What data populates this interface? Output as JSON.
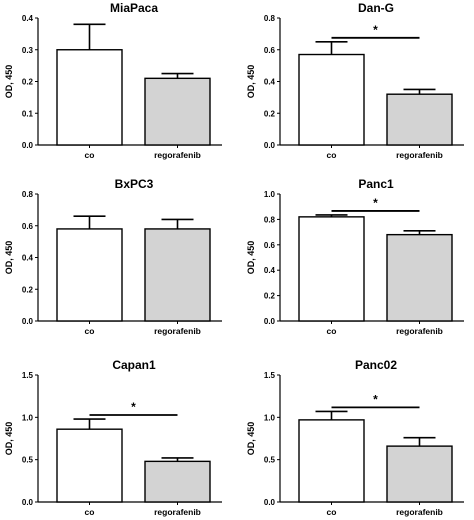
{
  "chart_data": [
    {
      "type": "bar",
      "title": "MiaPaca",
      "ylabel": "OD, 450",
      "categories": [
        "co",
        "regorafenib"
      ],
      "values": [
        0.3,
        0.21
      ],
      "errors": [
        0.08,
        0.015
      ],
      "ylim": [
        0,
        0.4
      ],
      "yticks": [
        "0.0",
        "0.1",
        "0.2",
        "0.3",
        "0.4"
      ],
      "significance": ""
    },
    {
      "type": "bar",
      "title": "Dan-G",
      "ylabel": "OD, 450",
      "categories": [
        "co",
        "regorafenib"
      ],
      "values": [
        0.57,
        0.32
      ],
      "errors": [
        0.08,
        0.03
      ],
      "ylim": [
        0,
        0.8
      ],
      "yticks": [
        "0.0",
        "0.2",
        "0.4",
        "0.6",
        "0.8"
      ],
      "significance": "*"
    },
    {
      "type": "bar",
      "title": "BxPC3",
      "ylabel": "OD, 450",
      "categories": [
        "co",
        "regorafenib"
      ],
      "values": [
        0.58,
        0.58
      ],
      "errors": [
        0.08,
        0.06
      ],
      "ylim": [
        0,
        0.8
      ],
      "yticks": [
        "0.0",
        "0.2",
        "0.4",
        "0.6",
        "0.8"
      ],
      "significance": ""
    },
    {
      "type": "bar",
      "title": "Panc1",
      "ylabel": "OD, 450",
      "categories": [
        "co",
        "regorafenib"
      ],
      "values": [
        0.82,
        0.68
      ],
      "errors": [
        0.015,
        0.03
      ],
      "ylim": [
        0,
        1.0
      ],
      "yticks": [
        "0.0",
        "0.2",
        "0.4",
        "0.6",
        "0.8",
        "1.0"
      ],
      "significance": "*"
    },
    {
      "type": "bar",
      "title": "Capan1",
      "ylabel": "OD, 450",
      "categories": [
        "co",
        "regorafenib"
      ],
      "values": [
        0.86,
        0.48
      ],
      "errors": [
        0.12,
        0.04
      ],
      "ylim": [
        0,
        1.5
      ],
      "yticks": [
        "0.0",
        "0.5",
        "1.0",
        "1.5"
      ],
      "significance": "*"
    },
    {
      "type": "bar",
      "title": "Panc02",
      "ylabel": "OD, 450",
      "categories": [
        "co",
        "regorafenib"
      ],
      "values": [
        0.97,
        0.66
      ],
      "errors": [
        0.1,
        0.1
      ],
      "ylim": [
        0,
        1.5
      ],
      "yticks": [
        "0.0",
        "0.5",
        "1.0",
        "1.5"
      ],
      "significance": "*"
    }
  ],
  "colors": {
    "co": "#ffffff",
    "regorafenib": "#d3d3d3",
    "stroke": "#000000"
  }
}
